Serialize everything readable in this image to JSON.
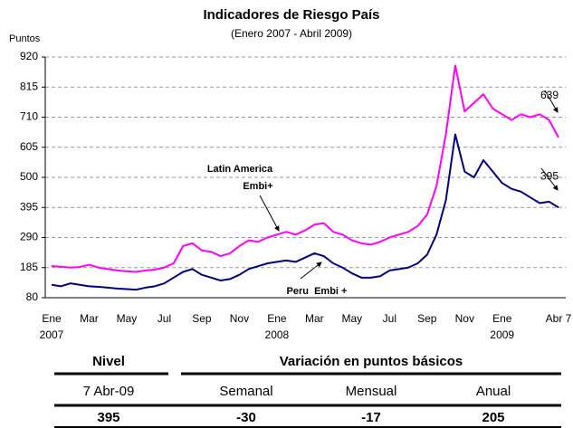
{
  "chart_data": {
    "type": "line",
    "title": "Indicadores de Riesgo País",
    "subtitle": "(Enero 2007 - Abril 2009)",
    "y_label": "Puntos",
    "categories": [
      "Ene 2007",
      null,
      null,
      null,
      "Mar",
      null,
      null,
      null,
      "May",
      null,
      null,
      null,
      "Jul",
      null,
      null,
      null,
      "Sep",
      null,
      null,
      null,
      "Nov",
      null,
      null,
      null,
      "Ene 2008",
      null,
      null,
      null,
      "Mar",
      null,
      null,
      null,
      "May",
      null,
      null,
      null,
      "Jul",
      null,
      null,
      null,
      "Sep",
      null,
      null,
      null,
      "Nov",
      null,
      null,
      null,
      "Ene 2009",
      null,
      null,
      null,
      null,
      null,
      "Abr 7"
    ],
    "series": [
      {
        "name": "Latin America Embi+",
        "color": "#ff00ff",
        "values": [
          190,
          188,
          185,
          187,
          195,
          185,
          180,
          175,
          172,
          170,
          175,
          178,
          185,
          200,
          260,
          270,
          245,
          240,
          225,
          235,
          260,
          280,
          275,
          290,
          300,
          310,
          300,
          315,
          335,
          340,
          310,
          300,
          280,
          270,
          265,
          275,
          290,
          300,
          310,
          330,
          370,
          470,
          650,
          890,
          730,
          760,
          790,
          740,
          720,
          700,
          720,
          710,
          720,
          700,
          639
        ]
      },
      {
        "name": "Peru Embi +",
        "color": "#000080",
        "values": [
          125,
          120,
          130,
          125,
          120,
          118,
          115,
          112,
          110,
          108,
          115,
          120,
          130,
          150,
          170,
          180,
          160,
          150,
          140,
          145,
          160,
          180,
          190,
          200,
          205,
          210,
          205,
          220,
          235,
          225,
          200,
          185,
          165,
          150,
          150,
          155,
          175,
          180,
          185,
          200,
          230,
          300,
          420,
          650,
          520,
          500,
          560,
          520,
          480,
          460,
          450,
          430,
          410,
          415,
          395
        ]
      }
    ],
    "annotations": [
      "Latin America",
      "Embi+",
      "Peru  Embi +"
    ],
    "ylim": [
      80,
      920
    ],
    "yticks": [
      80,
      185,
      290,
      395,
      500,
      605,
      710,
      815,
      920
    ],
    "grid": true
  },
  "table": {
    "headers": [
      "Nivel",
      "Variación en puntos básicos"
    ],
    "subheaders": [
      "7 Abr-09",
      "Semanal",
      "Mensual",
      "Anual"
    ],
    "row": [
      "395",
      "-30",
      "-17",
      "205"
    ]
  }
}
